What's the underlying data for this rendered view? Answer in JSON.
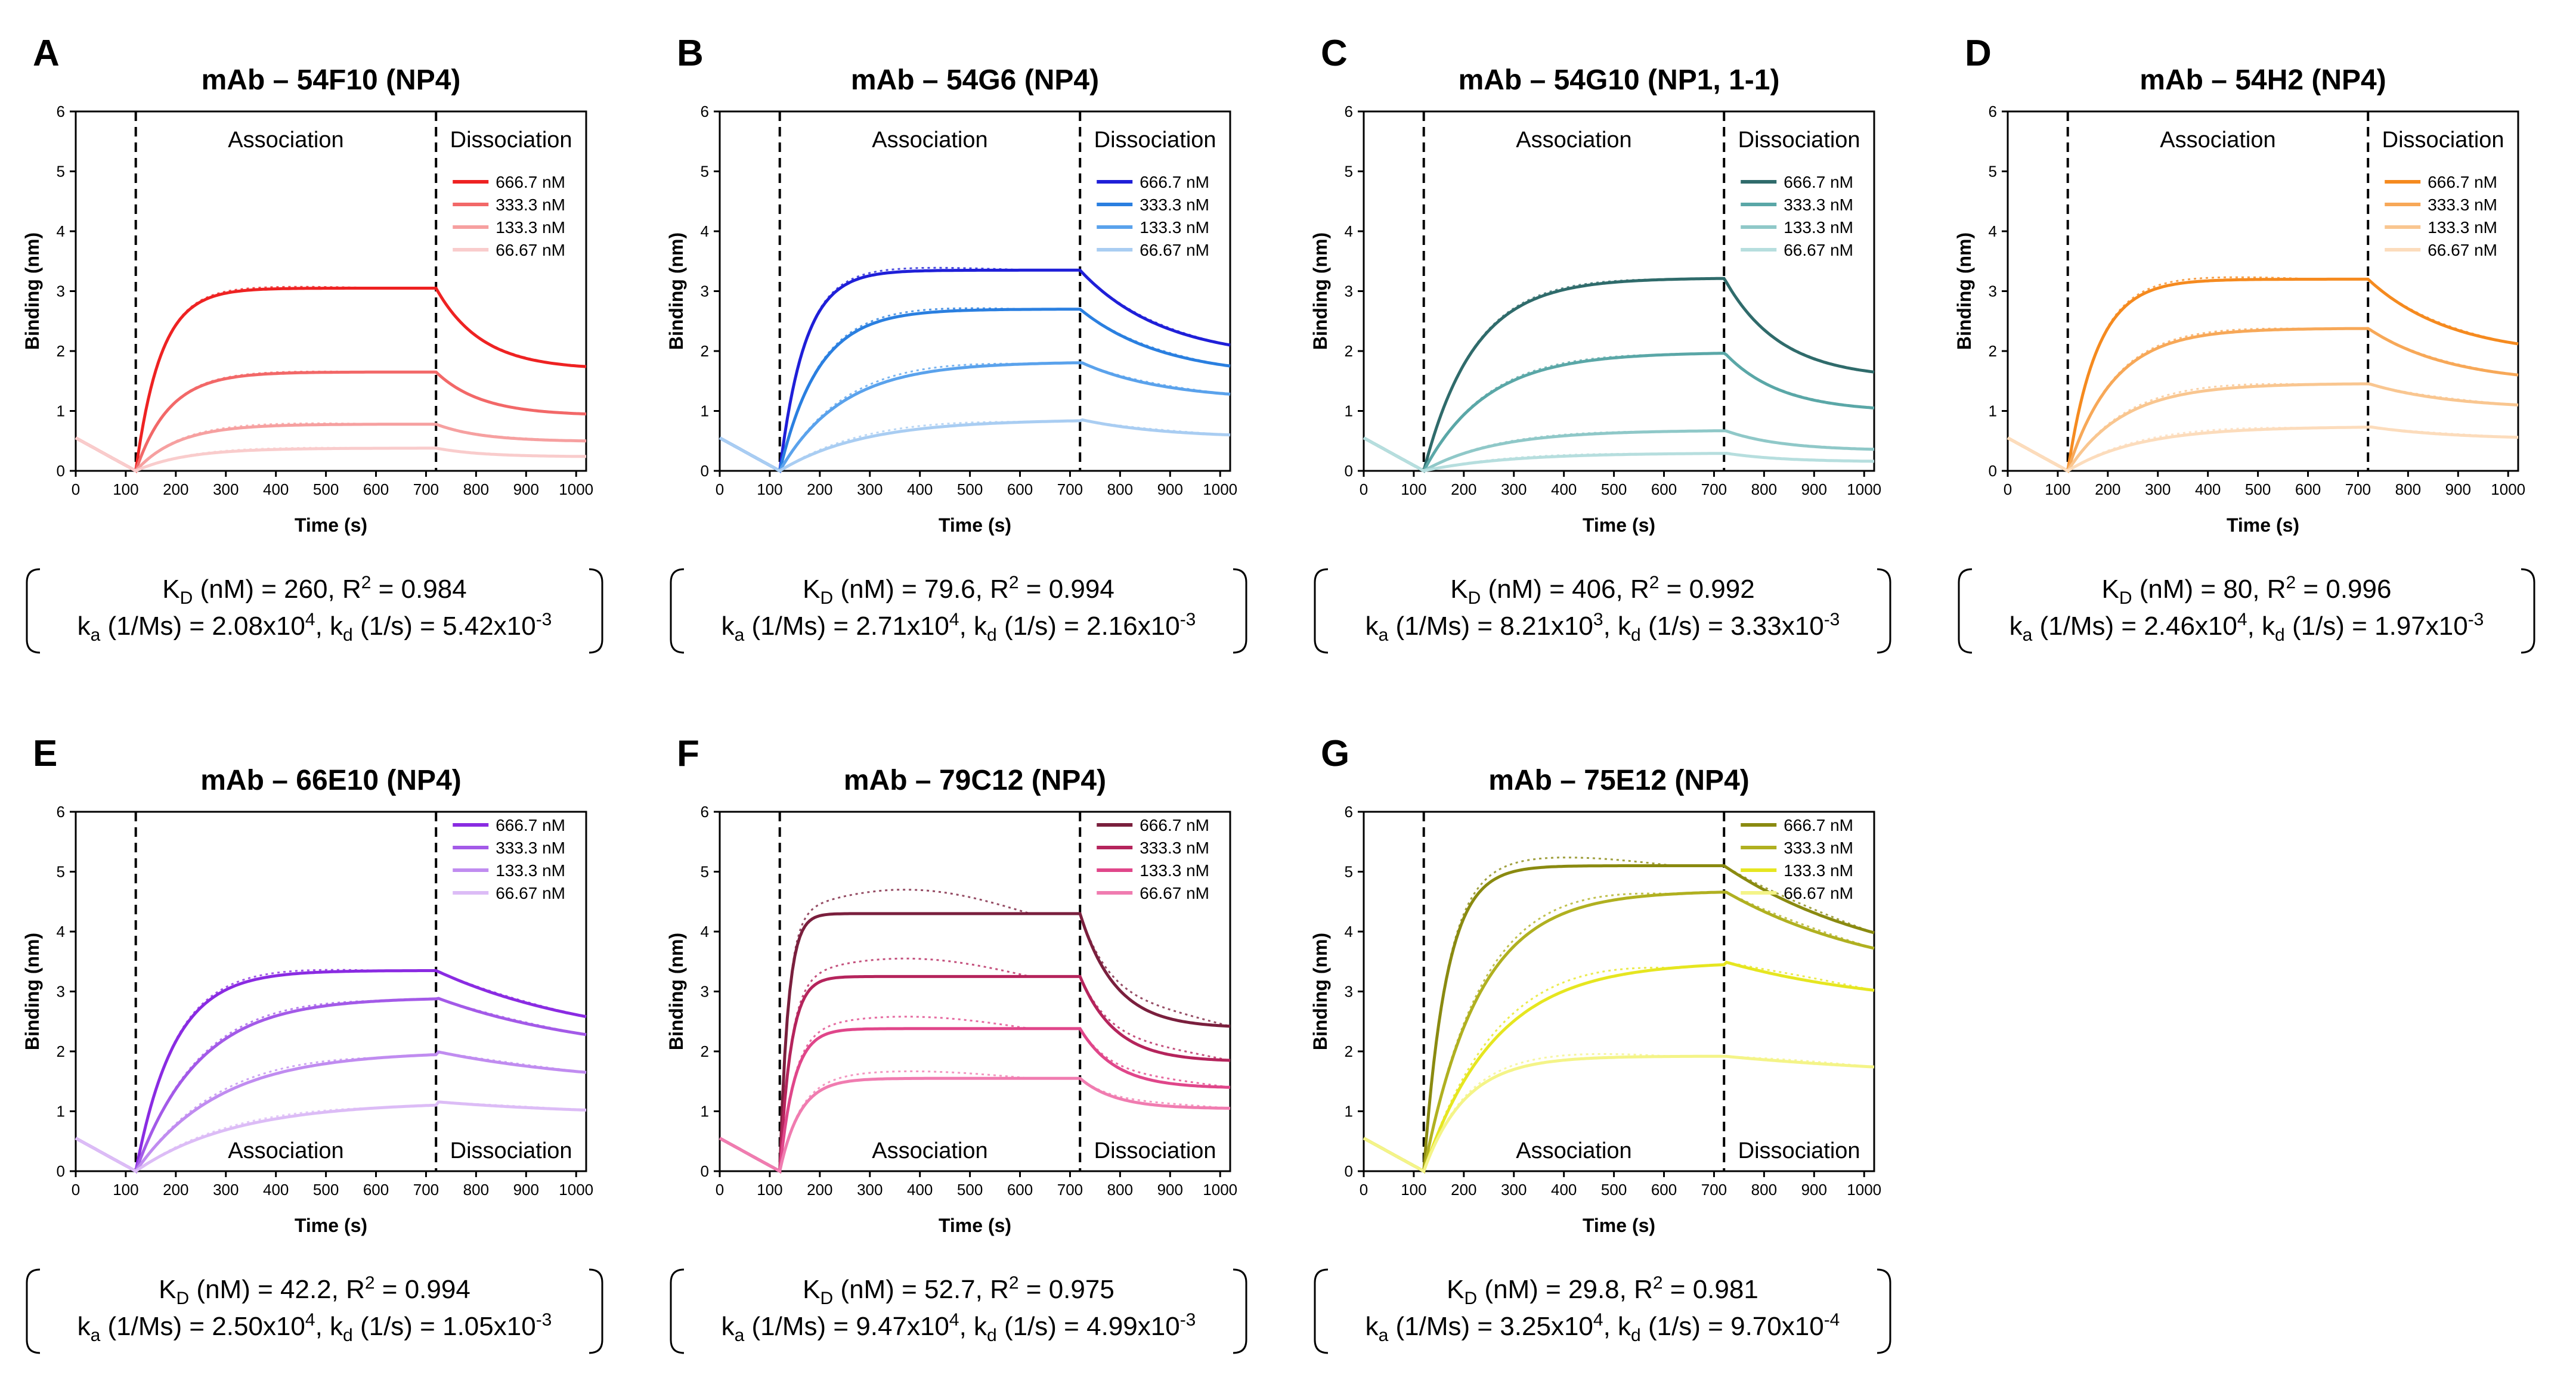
{
  "figure": {
    "panel_letters": [
      "A",
      "B",
      "C",
      "D",
      "E",
      "F",
      "G"
    ]
  },
  "chart_data": [
    {
      "panel": "A",
      "type": "line",
      "title": "mAb – 54F10 (NP4)",
      "xlabel": "Time (s)",
      "ylabel": "Binding (nm)",
      "xlim": [
        0,
        1020
      ],
      "ylim": [
        0,
        6
      ],
      "xticks": [
        "0",
        "100",
        "200",
        "300",
        "400",
        "500",
        "600",
        "700",
        "800",
        "900",
        "1000"
      ],
      "yticks": [
        "0",
        "1",
        "2",
        "3",
        "4",
        "5",
        "6"
      ],
      "association_start": 120,
      "dissociation_start": 720,
      "phase_labels": {
        "association": "Association",
        "dissociation": "Dissociation",
        "position": "top"
      },
      "legend": [
        "666.7 nM",
        "333.3 nM",
        "133.3 nM",
        "66.67 nM"
      ],
      "colors": [
        "#ee2222",
        "#f26868",
        "#f6a0a0",
        "#f9cccc"
      ],
      "series": [
        {
          "name": "666.7 nM",
          "plateau": 3.05,
          "end": 1.74,
          "k_on": 0.02,
          "k_off": 0.011,
          "fit_offset": 0.03
        },
        {
          "name": "333.3 nM",
          "plateau": 1.65,
          "end": 0.95,
          "k_on": 0.015,
          "k_off": 0.011,
          "fit_offset": 0.02
        },
        {
          "name": "133.3 nM",
          "plateau": 0.78,
          "end": 0.5,
          "k_on": 0.012,
          "k_off": 0.011,
          "fit_offset": 0.03
        },
        {
          "name": "66.67 nM",
          "plateau": 0.38,
          "end": 0.24,
          "k_on": 0.01,
          "k_off": 0.011,
          "fit_offset": 0.02
        }
      ],
      "baseline_start": 0.55,
      "kd_line": {
        "kd_label": "(nM) = 260, R",
        "r2": " = 0.984"
      },
      "rate_line": {
        "ka": " (1/Ms) = 2.08x10",
        "ka_exp": "4",
        "kd": " (1/s) = 5.42x10",
        "kd_exp": "-3"
      }
    },
    {
      "panel": "B",
      "type": "line",
      "title": "mAb – 54G6 (NP4)",
      "xlabel": "Time (s)",
      "ylabel": "Binding (nm)",
      "xlim": [
        0,
        1020
      ],
      "ylim": [
        0,
        6
      ],
      "xticks": [
        "0",
        "100",
        "200",
        "300",
        "400",
        "500",
        "600",
        "700",
        "800",
        "900",
        "1000"
      ],
      "yticks": [
        "0",
        "1",
        "2",
        "3",
        "4",
        "5",
        "6"
      ],
      "association_start": 120,
      "dissociation_start": 720,
      "phase_labels": {
        "association": "Association",
        "dissociation": "Dissociation",
        "position": "top"
      },
      "legend": [
        "666.7 nM",
        "333.3 nM",
        "133.3 nM",
        "66.67 nM"
      ],
      "colors": [
        "#1f1fd8",
        "#2a7fe0",
        "#5aa2ec",
        "#a9cdf2"
      ],
      "series": [
        {
          "name": "666.7 nM",
          "plateau": 3.35,
          "end": 2.1,
          "k_on": 0.02,
          "k_off": 0.006,
          "fit_offset": 0.05
        },
        {
          "name": "333.3 nM",
          "plateau": 2.7,
          "end": 1.75,
          "k_on": 0.013,
          "k_off": 0.006,
          "fit_offset": 0.05
        },
        {
          "name": "133.3 nM",
          "plateau": 1.82,
          "end": 1.28,
          "k_on": 0.008,
          "k_off": 0.006,
          "fit_offset": 0.06
        },
        {
          "name": "66.67 nM",
          "plateau": 0.86,
          "end": 0.6,
          "k_on": 0.006,
          "k_off": 0.006,
          "fit_offset": 0.05
        }
      ],
      "baseline_start": 0.55,
      "kd_line": {
        "kd_label": "(nM) = 79.6, R",
        "r2": " = 0.994"
      },
      "rate_line": {
        "ka": " (1/Ms) = 2.71x10",
        "ka_exp": "4",
        "kd": " (1/s) = 2.16x10",
        "kd_exp": "-3"
      }
    },
    {
      "panel": "C",
      "type": "line",
      "title": "mAb – 54G10 (NP1, 1-1)",
      "xlabel": "Time (s)",
      "ylabel": "Binding (nm)",
      "xlim": [
        0,
        1020
      ],
      "ylim": [
        0,
        6
      ],
      "xticks": [
        "0",
        "100",
        "200",
        "300",
        "400",
        "500",
        "600",
        "700",
        "800",
        "900",
        "1000"
      ],
      "yticks": [
        "0",
        "1",
        "2",
        "3",
        "4",
        "5",
        "6"
      ],
      "association_start": 120,
      "dissociation_start": 720,
      "phase_labels": {
        "association": "Association",
        "dissociation": "Dissociation",
        "position": "top"
      },
      "legend": [
        "666.7 nM",
        "333.3 nM",
        "133.3 nM",
        "66.67 nM"
      ],
      "colors": [
        "#2f6b6b",
        "#5aa7a7",
        "#8fc8c8",
        "#b6dede"
      ],
      "series": [
        {
          "name": "666.7 nM",
          "plateau": 3.22,
          "end": 1.65,
          "k_on": 0.01,
          "k_off": 0.009,
          "fit_offset": 0.03
        },
        {
          "name": "333.3 nM",
          "plateau": 1.98,
          "end": 1.05,
          "k_on": 0.008,
          "k_off": 0.009,
          "fit_offset": 0.03
        },
        {
          "name": "133.3 nM",
          "plateau": 0.68,
          "end": 0.36,
          "k_on": 0.007,
          "k_off": 0.009,
          "fit_offset": 0.02
        },
        {
          "name": "66.67 nM",
          "plateau": 0.3,
          "end": 0.16,
          "k_on": 0.006,
          "k_off": 0.009,
          "fit_offset": 0.02
        }
      ],
      "baseline_start": 0.55,
      "kd_line": {
        "kd_label": "(nM) = 406, R",
        "r2": " = 0.992"
      },
      "rate_line": {
        "ka": " (1/Ms) = 8.21x10",
        "ka_exp": "3",
        "kd": " (1/s) = 3.33x10",
        "kd_exp": "-3"
      }
    },
    {
      "panel": "D",
      "type": "line",
      "title": "mAb – 54H2 (NP4)",
      "xlabel": "Time (s)",
      "ylabel": "Binding (nm)",
      "xlim": [
        0,
        1020
      ],
      "ylim": [
        0,
        6
      ],
      "xticks": [
        "0",
        "100",
        "200",
        "300",
        "400",
        "500",
        "600",
        "700",
        "800",
        "900",
        "1000"
      ],
      "yticks": [
        "0",
        "1",
        "2",
        "3",
        "4",
        "5",
        "6"
      ],
      "association_start": 120,
      "dissociation_start": 720,
      "phase_labels": {
        "association": "Association",
        "dissociation": "Dissociation",
        "position": "top"
      },
      "legend": [
        "666.7 nM",
        "333.3 nM",
        "133.3 nM",
        "66.67 nM"
      ],
      "colors": [
        "#f58a1f",
        "#f7a858",
        "#f9c690",
        "#fcdcbc"
      ],
      "series": [
        {
          "name": "666.7 nM",
          "plateau": 3.2,
          "end": 2.12,
          "k_on": 0.017,
          "k_off": 0.006,
          "fit_offset": 0.05
        },
        {
          "name": "333.3 nM",
          "plateau": 2.38,
          "end": 1.6,
          "k_on": 0.011,
          "k_off": 0.006,
          "fit_offset": 0.04
        },
        {
          "name": "133.3 nM",
          "plateau": 1.46,
          "end": 1.1,
          "k_on": 0.009,
          "k_off": 0.006,
          "fit_offset": 0.05
        },
        {
          "name": "66.67 nM",
          "plateau": 0.74,
          "end": 0.56,
          "k_on": 0.007,
          "k_off": 0.006,
          "fit_offset": 0.04
        }
      ],
      "baseline_start": 0.55,
      "kd_line": {
        "kd_label": "(nM) = 80, R",
        "r2": " = 0.996"
      },
      "rate_line": {
        "ka": " (1/Ms) = 2.46x10",
        "ka_exp": "4",
        "kd": " (1/s) = 1.97x10",
        "kd_exp": "-3"
      }
    },
    {
      "panel": "E",
      "type": "line",
      "title": "mAb – 66E10 (NP4)",
      "xlabel": "Time (s)",
      "ylabel": "Binding (nm)",
      "xlim": [
        0,
        1020
      ],
      "ylim": [
        0,
        6
      ],
      "xticks": [
        "0",
        "100",
        "200",
        "300",
        "400",
        "500",
        "600",
        "700",
        "800",
        "900",
        "1000"
      ],
      "yticks": [
        "0",
        "1",
        "2",
        "3",
        "4",
        "5",
        "6"
      ],
      "association_start": 120,
      "dissociation_start": 720,
      "phase_labels": {
        "association": "Association",
        "dissociation": "Dissociation",
        "position": "bottom"
      },
      "legend": [
        "666.7 nM",
        "333.3 nM",
        "133.3 nM",
        "66.67 nM"
      ],
      "colors": [
        "#8a2be2",
        "#a35ae8",
        "#c08cf0",
        "#dcbcf6"
      ],
      "series": [
        {
          "name": "666.7 nM",
          "plateau": 3.35,
          "end": 2.58,
          "k_on": 0.013,
          "k_off": 0.003,
          "fit_offset": 0.05
        },
        {
          "name": "333.3 nM",
          "plateau": 2.9,
          "end": 2.28,
          "k_on": 0.008,
          "k_off": 0.003,
          "fit_offset": 0.05
        },
        {
          "name": "133.3 nM",
          "plateau": 2.0,
          "end": 1.65,
          "k_on": 0.006,
          "k_off": 0.003,
          "fit_offset": 0.06
        },
        {
          "name": "66.67 nM",
          "plateau": 1.16,
          "end": 1.02,
          "k_on": 0.005,
          "k_off": 0.003,
          "fit_offset": 0.04
        }
      ],
      "baseline_start": 0.55,
      "kd_line": {
        "kd_label": "(nM) = 42.2, R",
        "r2": " = 0.994"
      },
      "rate_line": {
        "ka": " (1/Ms) = 2.50x10",
        "ka_exp": "4",
        "kd": " (1/s) = 1.05x10",
        "kd_exp": "-3"
      }
    },
    {
      "panel": "F",
      "type": "line",
      "title": "mAb – 79C12 (NP4)",
      "xlabel": "Time (s)",
      "ylabel": "Binding (nm)",
      "xlim": [
        0,
        1020
      ],
      "ylim": [
        0,
        6
      ],
      "xticks": [
        "0",
        "100",
        "200",
        "300",
        "400",
        "500",
        "600",
        "700",
        "800",
        "900",
        "1000"
      ],
      "yticks": [
        "0",
        "1",
        "2",
        "3",
        "4",
        "5",
        "6"
      ],
      "association_start": 120,
      "dissociation_start": 720,
      "phase_labels": {
        "association": "Association",
        "dissociation": "Dissociation",
        "position": "bottom"
      },
      "legend": [
        "666.7 nM",
        "333.3 nM",
        "133.3 nM",
        "66.67 nM"
      ],
      "colors": [
        "#7a1f3d",
        "#b5245c",
        "#e0468a",
        "#f07cb0"
      ],
      "series": [
        {
          "name": "666.7 nM",
          "plateau": 4.3,
          "end": 2.42,
          "k_on": 0.06,
          "k_off": 0.014,
          "fit_offset": 0.4
        },
        {
          "name": "333.3 nM",
          "plateau": 3.25,
          "end": 1.85,
          "k_on": 0.045,
          "k_off": 0.014,
          "fit_offset": 0.3
        },
        {
          "name": "133.3 nM",
          "plateau": 2.38,
          "end": 1.4,
          "k_on": 0.035,
          "k_off": 0.014,
          "fit_offset": 0.2
        },
        {
          "name": "66.67 nM",
          "plateau": 1.55,
          "end": 1.05,
          "k_on": 0.025,
          "k_off": 0.014,
          "fit_offset": 0.12
        }
      ],
      "baseline_start": 0.55,
      "kd_line": {
        "kd_label": "(nM) = 52.7, R",
        "r2": " = 0.975"
      },
      "rate_line": {
        "ka": " (1/Ms) = 9.47x10",
        "ka_exp": "4",
        "kd": " (1/s) = 4.99x10",
        "kd_exp": "-3"
      }
    },
    {
      "panel": "G",
      "type": "line",
      "title": "mAb – 75E12 (NP4)",
      "xlabel": "Time (s)",
      "ylabel": "Binding (nm)",
      "xlim": [
        0,
        1020
      ],
      "ylim": [
        0,
        6
      ],
      "xticks": [
        "0",
        "100",
        "200",
        "300",
        "400",
        "500",
        "600",
        "700",
        "800",
        "900",
        "1000"
      ],
      "yticks": [
        "0",
        "1",
        "2",
        "3",
        "4",
        "5",
        "6"
      ],
      "association_start": 120,
      "dissociation_start": 720,
      "phase_labels": {
        "association": "Association",
        "dissociation": "Dissociation",
        "position": "bottom"
      },
      "legend": [
        "666.7 nM",
        "333.3 nM",
        "133.3 nM",
        "66.67 nM"
      ],
      "colors": [
        "#8a8a10",
        "#b0b020",
        "#e6e620",
        "#f4f488"
      ],
      "series": [
        {
          "name": "666.7 nM",
          "plateau": 5.1,
          "end": 3.98,
          "k_on": 0.022,
          "k_off": 0.003,
          "fit_offset": 0.15
        },
        {
          "name": "333.3 nM",
          "plateau": 4.68,
          "end": 3.72,
          "k_on": 0.009,
          "k_off": 0.003,
          "fit_offset": 0.12
        },
        {
          "name": "133.3 nM",
          "plateau": 3.5,
          "end": 3.02,
          "k_on": 0.007,
          "k_off": 0.003,
          "fit_offset": 0.15
        },
        {
          "name": "66.67 nM",
          "plateau": 1.92,
          "end": 1.74,
          "k_on": 0.012,
          "k_off": 0.002,
          "fit_offset": 0.08
        }
      ],
      "baseline_start": 0.55,
      "kd_line": {
        "kd_label": "(nM) = 29.8, R",
        "r2": " = 0.981"
      },
      "rate_line": {
        "ka": " (1/Ms) = 3.25x10",
        "ka_exp": "4",
        "kd": " (1/s) = 9.70x10",
        "kd_exp": "-4"
      }
    }
  ]
}
